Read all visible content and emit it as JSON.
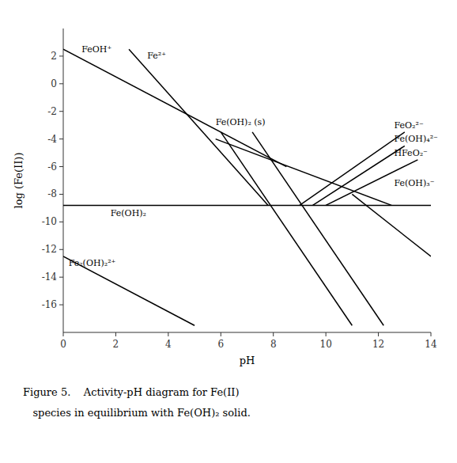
{
  "chart_data": {
    "type": "line",
    "xlabel": "pH",
    "ylabel": "log (Fe(II))",
    "xlim": [
      0,
      14
    ],
    "ylim": [
      -18,
      4
    ],
    "xticks": [
      0,
      2,
      4,
      6,
      8,
      10,
      12,
      14
    ],
    "yticks": [
      2,
      0,
      -2,
      -4,
      -6,
      -8,
      -10,
      -12,
      -14,
      -16
    ],
    "grid": false,
    "color": "#000000",
    "hline": -8.8,
    "series": [
      {
        "x": [
          0.0,
          8.5
        ],
        "values": [
          2.5,
          -6.0
        ]
      },
      {
        "x": [
          2.5,
          7.8
        ],
        "values": [
          2.5,
          -8.8
        ]
      },
      {
        "x": [
          0.0,
          5.0
        ],
        "values": [
          -12.5,
          -17.5
        ]
      },
      {
        "x": [
          5.8,
          12.5
        ],
        "values": [
          -4.0,
          -8.8
        ]
      },
      {
        "x": [
          6.0,
          11.0
        ],
        "values": [
          -3.5,
          -17.5
        ]
      },
      {
        "x": [
          7.2,
          12.2
        ],
        "values": [
          -3.5,
          -17.5
        ]
      },
      {
        "x": [
          9.0,
          13.0
        ],
        "values": [
          -8.8,
          -3.5
        ]
      },
      {
        "x": [
          9.5,
          13.0
        ],
        "values": [
          -8.8,
          -4.5
        ]
      },
      {
        "x": [
          10.0,
          13.5
        ],
        "values": [
          -8.8,
          -5.5
        ]
      },
      {
        "x": [
          11.0,
          14.0
        ],
        "values": [
          -8.0,
          -12.5
        ]
      }
    ],
    "annotations": [
      {
        "x": 0.7,
        "y": 2.3,
        "text": "FeOH⁺"
      },
      {
        "x": 3.2,
        "y": 1.8,
        "text": "Fe²⁺"
      },
      {
        "x": 0.2,
        "y": -13.2,
        "text": "Fe₂(OH)₂²⁺"
      },
      {
        "x": 1.8,
        "y": -9.6,
        "text": "Fe(OH)₂"
      },
      {
        "x": 5.8,
        "y": -3.0,
        "text": "Fe(OH)₂ (s)"
      },
      {
        "x": 12.6,
        "y": -3.2,
        "text": "FeO₂²⁻"
      },
      {
        "x": 12.6,
        "y": -4.2,
        "text": "Fe(OH)₄²⁻"
      },
      {
        "x": 12.6,
        "y": -5.2,
        "text": "HFeO₂⁻"
      },
      {
        "x": 12.6,
        "y": -7.4,
        "text": "Fe(OH)₃⁻"
      }
    ],
    "caption": [
      "Figure 5.    Activity-pH diagram for Fe(II)",
      "   species in equilibrium with Fe(OH)₂ solid."
    ]
  }
}
